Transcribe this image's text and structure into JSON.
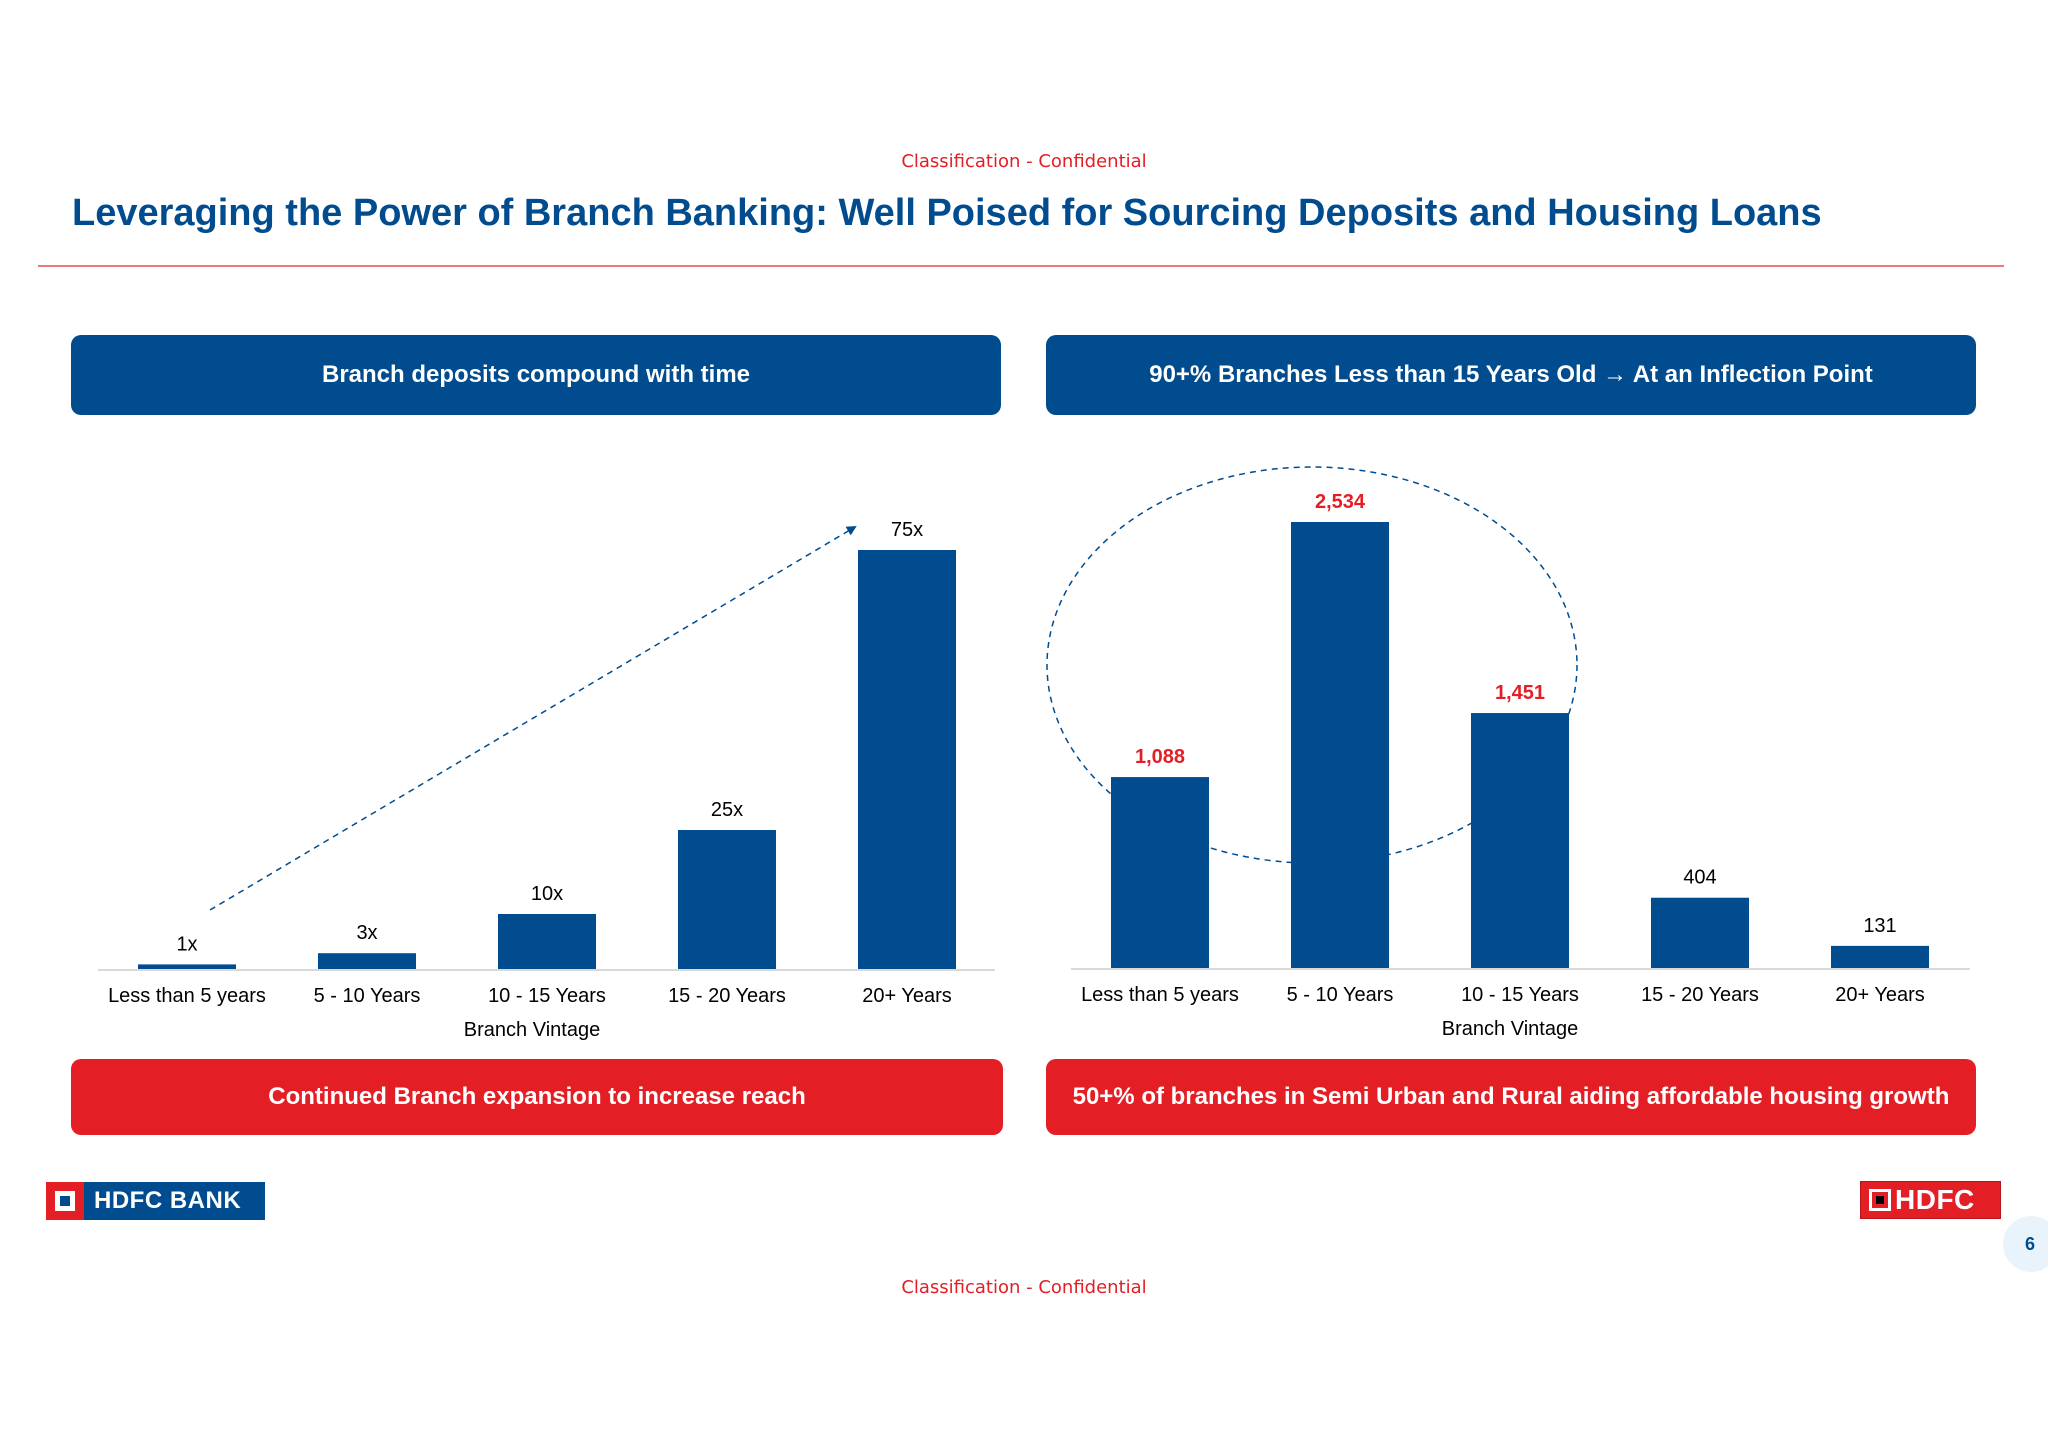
{
  "classification": "Classification - Confidential",
  "title": "Leveraging the Power of Branch Banking: Well Poised for Sourcing Deposits and Housing Loans",
  "banners": {
    "left_top": "Branch deposits compound with time",
    "right_top": "90+% Branches Less than 15 Years Old → At an Inflection Point",
    "left_bottom": "Continued Branch expansion to increase reach",
    "right_bottom": "50+% of branches in Semi Urban and Rural aiding affordable housing growth"
  },
  "logos": {
    "left": "HDFC BANK",
    "right": "HDFC"
  },
  "page_number": "6",
  "colors": {
    "brand_blue": "#004c8f",
    "brand_red": "#e31e24",
    "bar": "#004c8f",
    "highlight_label": "#e31e24"
  },
  "chart_data": [
    {
      "type": "bar",
      "categories": [
        "Less than 5 years",
        "5 - 10 Years",
        "10 - 15 Years",
        "15 - 20 Years",
        "20+ Years"
      ],
      "values": [
        1,
        3,
        10,
        25,
        75
      ],
      "value_labels": [
        "1x",
        "3x",
        "10x",
        "25x",
        "75x"
      ],
      "xlabel": "Branch Vintage",
      "ylabel": "",
      "ylim": [
        0,
        75
      ],
      "grid": false,
      "annotation": "dashed trend arrow from first to last bar"
    },
    {
      "type": "bar",
      "categories": [
        "Less than 5 years",
        "5 - 10 Years",
        "10 - 15 Years",
        "15 - 20 Years",
        "20+ Years"
      ],
      "values": [
        1088,
        2534,
        1451,
        404,
        131
      ],
      "value_labels": [
        "1,088",
        "2,534",
        "1,451",
        "404",
        "131"
      ],
      "highlighted": [
        true,
        true,
        true,
        false,
        false
      ],
      "xlabel": "Branch Vintage",
      "ylabel": "",
      "ylim": [
        0,
        2534
      ],
      "grid": false,
      "annotation": "dashed ellipse around first three bars"
    }
  ]
}
